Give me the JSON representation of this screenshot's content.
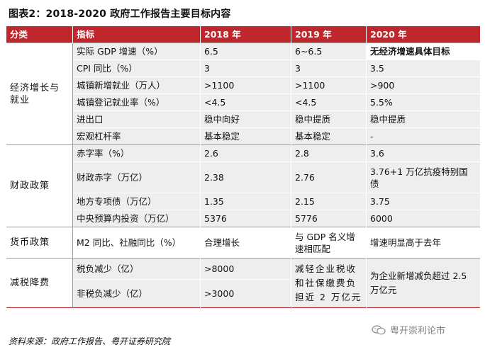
{
  "title": "图表2：2018-2020 政府工作报告主要目标内容",
  "headers": [
    "分类",
    "指标",
    "2018 年",
    "2019 年",
    "2020 年"
  ],
  "categories": {
    "growth": "经济增长与就业",
    "fiscal": "财政政策",
    "monetary": "货币政策",
    "tax": "减税降费"
  },
  "rows": [
    {
      "indicator": "实际 GDP 增速（%）",
      "y2018": "6.5",
      "y2019": "6~6.5",
      "y2020": "无经济增速具体目标"
    },
    {
      "indicator": "CPI 同比（%）",
      "y2018": "3",
      "y2019": "3",
      "y2020": "3.5"
    },
    {
      "indicator": "城镇新增就业（万人）",
      "y2018": ">1100",
      "y2019": ">1100",
      "y2020": ">900"
    },
    {
      "indicator": "城镇登记就业率（%）",
      "y2018": "<4.5",
      "y2019": "<4.5",
      "y2020": "5.5%"
    },
    {
      "indicator": "进出口",
      "y2018": "稳中向好",
      "y2019": "稳中提质",
      "y2020": "稳中提质"
    },
    {
      "indicator": "宏观杠杆率",
      "y2018": "基本稳定",
      "y2019": "基本稳定",
      "y2020": "-"
    },
    {
      "indicator": "赤字率（%）",
      "y2018": "2.6",
      "y2019": "2.8",
      "y2020": "3.6"
    },
    {
      "indicator": "财政赤字（万亿）",
      "y2018": "2.38",
      "y2019": "2.76",
      "y2020": "3.76+1 万亿抗疫特别国债"
    },
    {
      "indicator": "地方专项债（万亿）",
      "y2018": "1.35",
      "y2019": "2.15",
      "y2020": "3.75"
    },
    {
      "indicator": "中央预算内投资（万亿）",
      "y2018": "5376",
      "y2019": "5776",
      "y2020": "6000"
    },
    {
      "indicator": "M2 同比、社融同比（%）",
      "y2018": "合理增长",
      "y2019": "与 GDP 名义增速相匹配",
      "y2020": "增速明显高于去年"
    },
    {
      "indicator": "税负减少（亿）",
      "y2018": ">8000"
    },
    {
      "indicator": "非税负减少（亿）",
      "y2018": ">3000"
    }
  ],
  "tax_merged": {
    "y2019": "减轻企业税收和社保缴费负担近 2 万亿元",
    "y2020": "为企业新增减负超过 2.5 万亿元"
  },
  "source": "资料来源：政府工作报告、粤开证券研究院",
  "watermark": {
    "text": "粤开崇利论市",
    "icon": "wechat-icon"
  },
  "colors": {
    "header_bg": "#c0272d",
    "row_gray": "#eeeeee"
  }
}
